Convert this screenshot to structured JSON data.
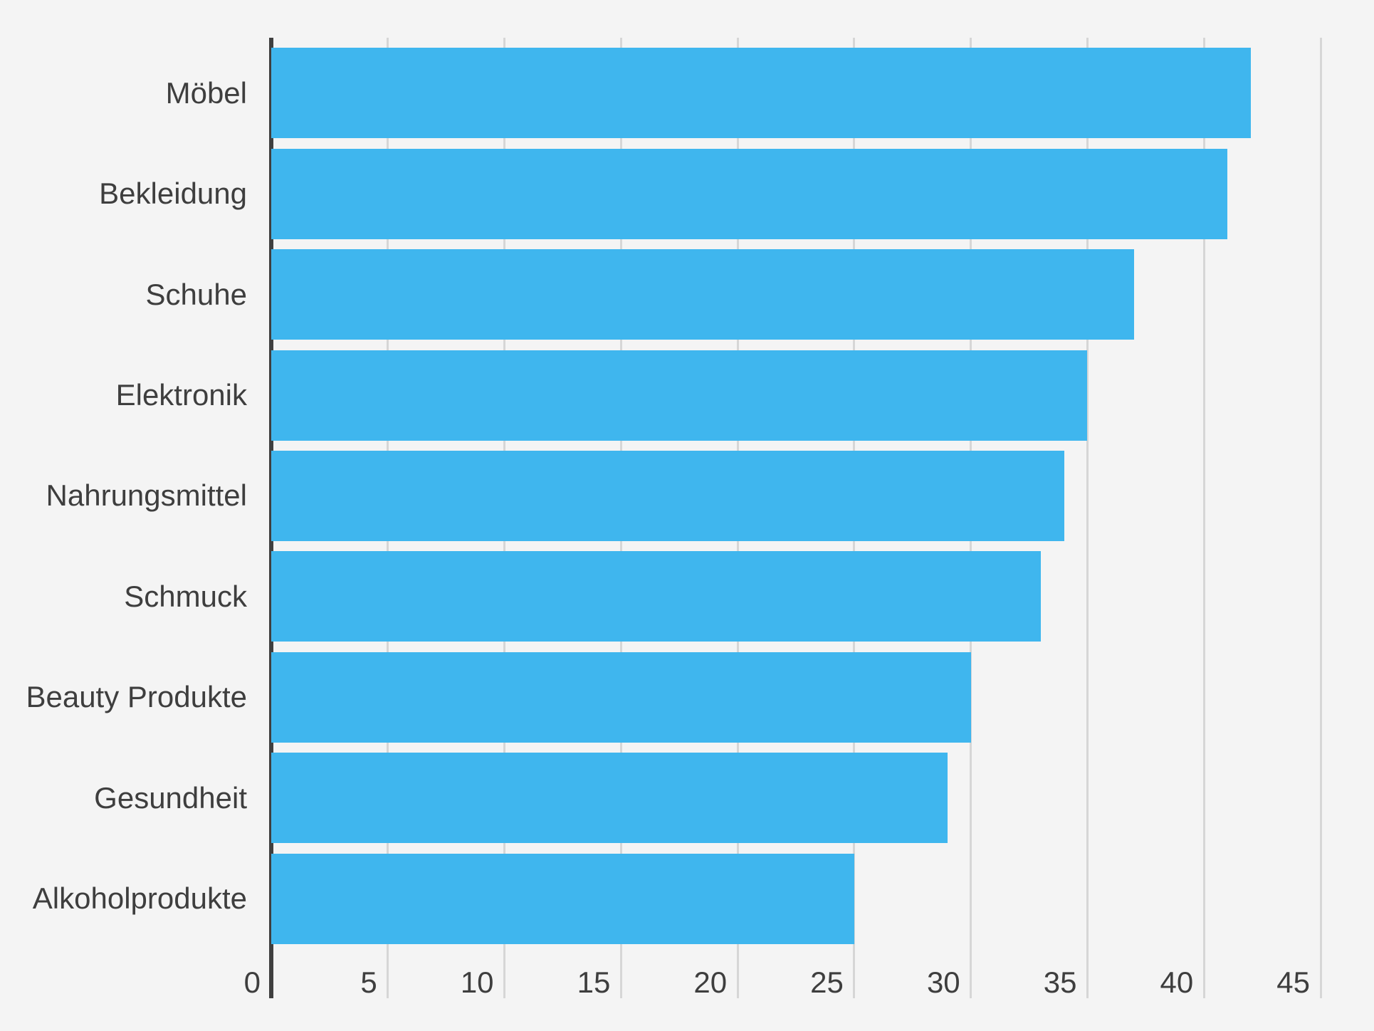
{
  "chart_data": {
    "type": "bar",
    "orientation": "horizontal",
    "title": "",
    "xlabel": "",
    "ylabel": "",
    "categories": [
      "Möbel",
      "Bekleidung",
      "Schuhe",
      "Elektronik",
      "Nahrungsmittel",
      "Schmuck",
      "Beauty Produkte",
      "Gesundheit",
      "Alkoholprodukte"
    ],
    "values": [
      42,
      41,
      37,
      35,
      34,
      33,
      30,
      29,
      25
    ],
    "xlim": [
      0,
      45
    ],
    "x_ticks": [
      0,
      5,
      10,
      15,
      20,
      25,
      30,
      35,
      40,
      45
    ],
    "grid": true,
    "legend": false
  },
  "style": {
    "background_color": "#f4f4f4",
    "bar_color": "#3fb6ee",
    "gridline_color": "#d6d6d6",
    "axis_line_color": "#3f3f3f",
    "text_color": "#3e3e3e"
  }
}
